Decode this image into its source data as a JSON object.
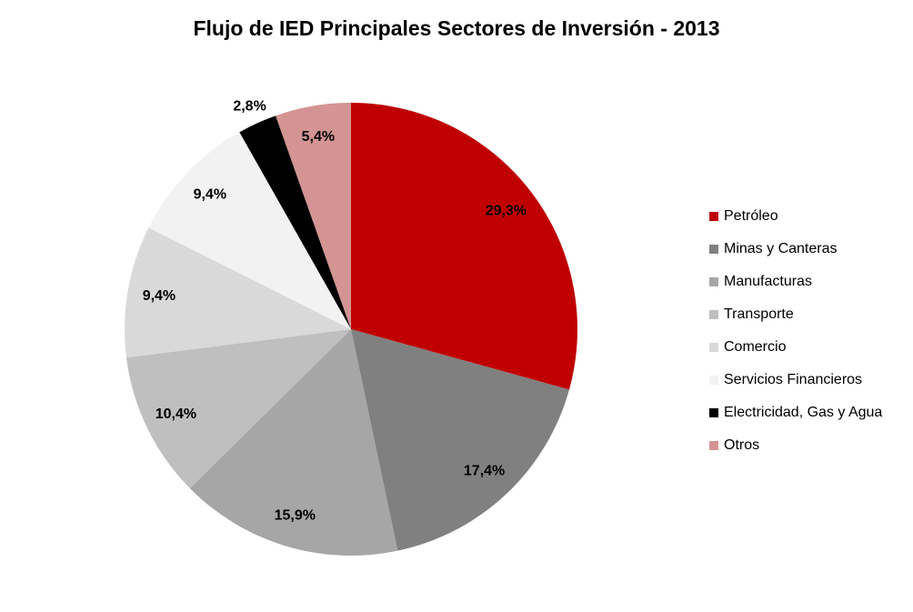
{
  "chart_data": {
    "type": "pie",
    "title": "Flujo de IED Principales Sectores de Inversión - 2013",
    "categories": [
      "Petróleo",
      "Minas y Canteras",
      "Manufacturas",
      "Transporte",
      "Comercio",
      "Servicios Financieros",
      "Electricidad, Gas y Agua",
      "Otros"
    ],
    "values": [
      29.3,
      17.4,
      15.9,
      10.4,
      9.4,
      9.4,
      2.8,
      5.4
    ],
    "value_labels": [
      "29,3%",
      "17,4%",
      "15,9%",
      "10,4%",
      "9,4%",
      "9,4%",
      "2,8%",
      "5,4%"
    ],
    "colors": [
      "#c00000",
      "#808080",
      "#a6a6a6",
      "#bfbfbf",
      "#d9d9d9",
      "#f2f2f2",
      "#000000",
      "#d49494"
    ],
    "legend": "right"
  }
}
